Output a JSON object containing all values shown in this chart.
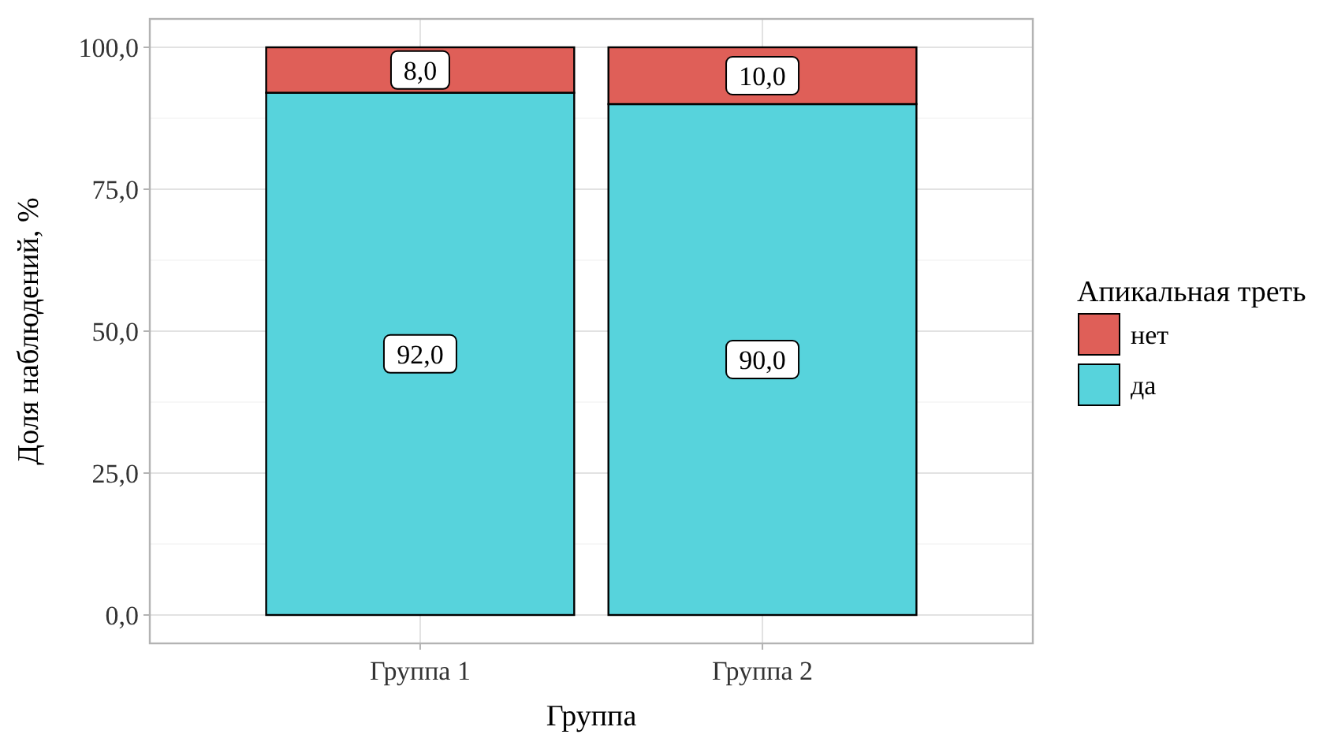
{
  "chart_data": {
    "type": "bar",
    "stacked": true,
    "xlabel": "Группа",
    "ylabel": "Доля наблюдений, %",
    "legend_title": "Апикальная треть",
    "categories": [
      "Группа 1",
      "Группа 2"
    ],
    "series": [
      {
        "name": "да",
        "color": "#57d3dc",
        "values": [
          92,
          90
        ],
        "value_labels": [
          "92,0",
          "90,0"
        ]
      },
      {
        "name": "нет",
        "color": "#df5f58",
        "values": [
          8,
          10
        ],
        "value_labels": [
          "8,0",
          "10,0"
        ]
      }
    ],
    "ylim": [
      -5,
      105
    ],
    "yticks": [
      {
        "value": 0,
        "label": "0,0"
      },
      {
        "value": 25,
        "label": "25,0"
      },
      {
        "value": 50,
        "label": "50,0"
      },
      {
        "value": 75,
        "label": "75,0"
      },
      {
        "value": 100,
        "label": "100,0"
      }
    ],
    "grid": true,
    "legend": "right"
  }
}
